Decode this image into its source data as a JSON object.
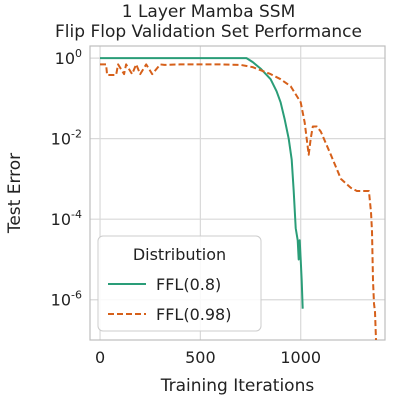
{
  "chart_data": {
    "type": "line",
    "title": "1 Layer Mamba SSM",
    "subtitle": "Flip Flop Validation Set Performance",
    "xlabel": "Training Iterations",
    "ylabel": "Test Error",
    "xlim": [
      -50,
      1420
    ],
    "ylim": [
      1e-07,
      2
    ],
    "yscale": "log",
    "grid": true,
    "x_ticks": [
      0,
      500,
      1000
    ],
    "x_tick_labels": [
      "0",
      "500",
      "1000"
    ],
    "y_ticks": [
      1,
      0.01,
      0.0001,
      1e-06
    ],
    "y_tick_labels": [
      "10^0",
      "10^-2",
      "10^-4",
      "10^-6"
    ],
    "legend": {
      "title": "Distribution",
      "position": "lower-left"
    },
    "series": [
      {
        "name": "FFL(0.8)",
        "color": "#2a9d78",
        "style": "solid",
        "x": [
          0,
          100,
          200,
          300,
          400,
          500,
          600,
          700,
          730,
          760,
          800,
          850,
          880,
          900,
          920,
          940,
          955,
          965,
          975,
          985,
          990,
          995,
          1000,
          1005,
          1010
        ],
        "y": [
          1,
          1,
          1,
          1,
          1,
          1,
          1,
          1,
          1,
          0.8,
          0.55,
          0.3,
          0.15,
          0.08,
          0.03,
          0.01,
          0.003,
          0.0005,
          6e-05,
          3e-05,
          1e-05,
          3e-05,
          1e-05,
          3e-06,
          6e-07
        ]
      },
      {
        "name": "FFL(0.98)",
        "color": "#d6601a",
        "style": "dashed",
        "x": [
          0,
          30,
          35,
          80,
          90,
          120,
          130,
          160,
          180,
          200,
          230,
          260,
          300,
          320,
          400,
          500,
          600,
          700,
          760,
          800,
          850,
          900,
          950,
          1000,
          1020,
          1030,
          1040,
          1050,
          1060,
          1080,
          1100,
          1150,
          1200,
          1250,
          1280,
          1300,
          1320,
          1340,
          1350,
          1355,
          1360,
          1365,
          1370,
          1375
        ],
        "y": [
          0.7,
          0.7,
          0.38,
          0.38,
          0.7,
          0.4,
          0.7,
          0.4,
          0.7,
          0.4,
          0.7,
          0.4,
          0.7,
          0.68,
          0.7,
          0.7,
          0.7,
          0.68,
          0.6,
          0.5,
          0.4,
          0.3,
          0.2,
          0.08,
          0.025,
          0.01,
          0.004,
          0.01,
          0.02,
          0.02,
          0.015,
          0.004,
          0.001,
          0.0006,
          0.0005,
          0.0005,
          0.0005,
          0.0005,
          0.00015,
          5e-05,
          3e-06,
          8e-07,
          5e-07,
          1e-07
        ]
      }
    ]
  }
}
